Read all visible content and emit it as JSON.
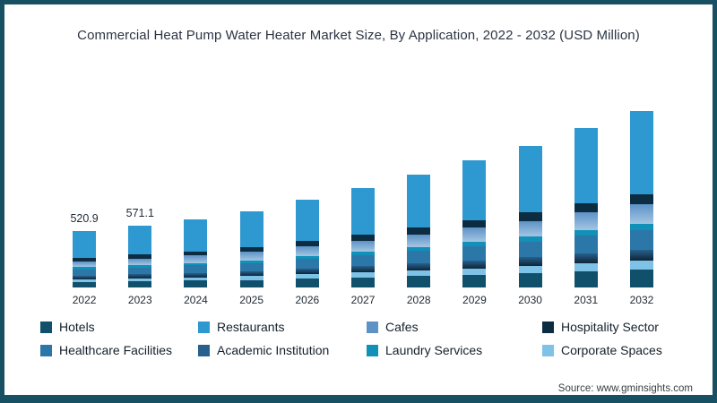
{
  "page": {
    "title": "Commercial Heat Pump Water Heater Market Size, By Application, 2022 - 2032 (USD Million)",
    "source": "Source: www.gminsights.com",
    "border_color": "#174f63",
    "background": "#ffffff"
  },
  "chart_data": {
    "type": "bar",
    "stacked": true,
    "title": "Commercial Heat Pump Water Heater Market Size, By Application, 2022 - 2032 (USD Million)",
    "unit": "USD Million",
    "xlabel": "",
    "ylabel": "",
    "grid": false,
    "axes_visible": false,
    "legend_position": "bottom",
    "ylim": [
      0,
      1800
    ],
    "categories": [
      "2022",
      "2023",
      "2024",
      "2025",
      "2026",
      "2027",
      "2028",
      "2029",
      "2030",
      "2031",
      "2032"
    ],
    "totals": [
      520.9,
      571.1,
      630,
      700,
      810,
      915,
      1040,
      1170,
      1310,
      1470,
      1630
    ],
    "total_labels": [
      "520.9",
      "571.1",
      "",
      "",
      "",
      "",
      "",
      "",
      "",
      "",
      ""
    ],
    "stack_order": [
      "Hotels",
      "Corporate Spaces",
      "Academic Institution",
      "Healthcare Facilities",
      "Laundry Services",
      "Cafes",
      "Hospitality Sector",
      "Restaurants"
    ],
    "series": [
      {
        "name": "Hotels",
        "color": "#11506b",
        "values": [
          52.1,
          57.1,
          63.0,
          70.0,
          81.0,
          91.5,
          104.0,
          117.0,
          131.0,
          147.0,
          163.0
        ]
      },
      {
        "name": "Restaurants",
        "color": "#2e98d1",
        "values": [
          244.8,
          268.4,
          296.1,
          329.0,
          380.7,
          430.1,
          488.8,
          549.9,
          615.7,
          690.9,
          766.1
        ]
      },
      {
        "name": "Cafes",
        "color": "#5d92c6",
        "color2": "#a4c6e3",
        "values": [
          57.3,
          62.8,
          69.3,
          77.0,
          89.1,
          100.7,
          114.4,
          128.7,
          144.1,
          161.7,
          179.3
        ]
      },
      {
        "name": "Hospitality Sector",
        "color": "#0c2c42",
        "values": [
          31.3,
          34.3,
          37.8,
          42.0,
          48.6,
          54.9,
          62.4,
          70.2,
          78.6,
          88.2,
          97.8
        ]
      },
      {
        "name": "Healthcare Facilities",
        "color": "#2b77a8",
        "values": [
          57.3,
          62.8,
          69.3,
          77.0,
          89.1,
          100.7,
          114.4,
          128.7,
          144.1,
          161.7,
          179.3
        ]
      },
      {
        "name": "Academic Institution",
        "color": "#27608d",
        "color2": "#0e2537",
        "values": [
          33.9,
          37.1,
          41.0,
          45.5,
          52.7,
          59.5,
          67.6,
          76.1,
          85.2,
          95.6,
          106.0
        ]
      },
      {
        "name": "Laundry Services",
        "color": "#1190b8",
        "values": [
          18.2,
          20.0,
          22.1,
          24.5,
          28.4,
          32.0,
          36.4,
          41.0,
          45.9,
          51.5,
          57.1
        ]
      },
      {
        "name": "Corporate Spaces",
        "color": "#7fc2e8",
        "values": [
          26.0,
          28.6,
          31.5,
          35.0,
          40.5,
          45.8,
          52.0,
          58.5,
          65.5,
          73.5,
          81.5
        ]
      }
    ]
  }
}
